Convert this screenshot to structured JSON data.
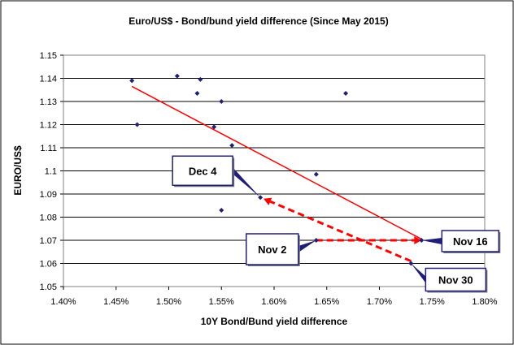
{
  "chart_data": {
    "type": "scatter",
    "title": "Euro/US$  - Bond/bund yield difference (Since May 2015)",
    "xlabel": "10Y Bond/Bund yield difference",
    "ylabel": "EURO/US$",
    "xlim": [
      0.014,
      0.018
    ],
    "ylim": [
      1.05,
      1.15
    ],
    "x_ticks": [
      "1.40%",
      "1.45%",
      "1.50%",
      "1.55%",
      "1.60%",
      "1.65%",
      "1.70%",
      "1.75%",
      "1.80%"
    ],
    "y_ticks": [
      "1.05",
      "1.06",
      "1.07",
      "1.08",
      "1.09",
      "1.1",
      "1.11",
      "1.12",
      "1.13",
      "1.14",
      "1.15"
    ],
    "grid": "horizontal",
    "points": [
      {
        "x": 0.01465,
        "y": 1.139
      },
      {
        "x": 0.0147,
        "y": 1.12
      },
      {
        "x": 0.01508,
        "y": 1.141
      },
      {
        "x": 0.01527,
        "y": 1.1335
      },
      {
        "x": 0.0153,
        "y": 1.1395
      },
      {
        "x": 0.01543,
        "y": 1.119
      },
      {
        "x": 0.0155,
        "y": 1.13
      },
      {
        "x": 0.0155,
        "y": 1.083
      },
      {
        "x": 0.0156,
        "y": 1.111
      },
      {
        "x": 0.01587,
        "y": 1.0885
      },
      {
        "x": 0.0164,
        "y": 1.0985
      },
      {
        "x": 0.0164,
        "y": 1.07
      },
      {
        "x": 0.01668,
        "y": 1.1335
      },
      {
        "x": 0.0174,
        "y": 1.07
      },
      {
        "x": 0.0173,
        "y": 1.06
      }
    ],
    "trendline": {
      "x": [
        0.01465,
        0.0174
      ],
      "y": [
        1.1365,
        1.0705
      ],
      "color": "#ff0000"
    },
    "arrows": [
      {
        "from": [
          0.0164,
          1.07
        ],
        "to": [
          0.0174,
          1.07
        ],
        "color": "#ff0000"
      },
      {
        "from": [
          0.0173,
          1.061
        ],
        "to": [
          0.0159,
          1.088
        ],
        "color": "#ff0000"
      }
    ],
    "callouts": [
      {
        "text": "Dec 4",
        "point": [
          0.01587,
          1.0885
        ]
      },
      {
        "text": "Nov 2",
        "point": [
          0.0164,
          1.07
        ]
      },
      {
        "text": "Nov 16",
        "point": [
          0.0174,
          1.07
        ]
      },
      {
        "text": "Nov 30",
        "point": [
          0.0173,
          1.06
        ]
      }
    ],
    "colors": {
      "points": "#1f1f7a",
      "trend": "#ff0000",
      "callout_border": "#1f1f7a"
    }
  }
}
